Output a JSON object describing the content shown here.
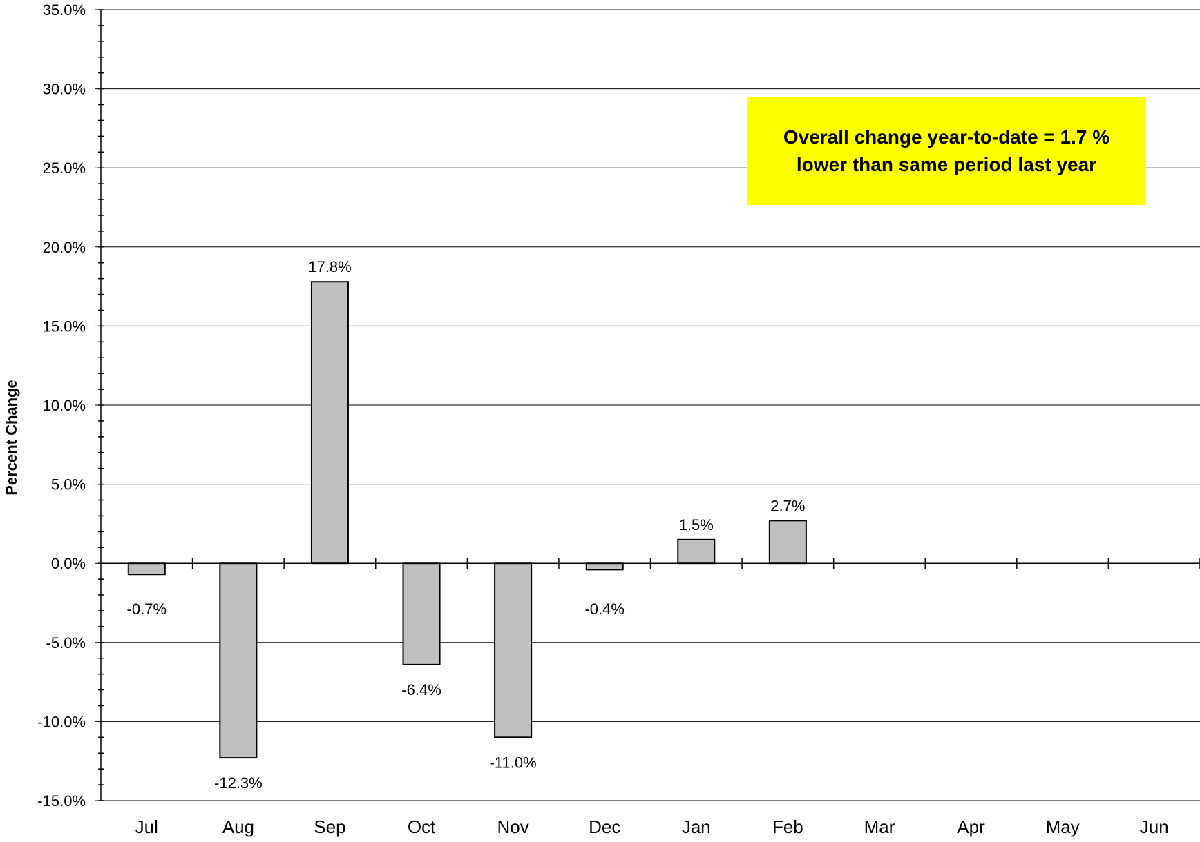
{
  "chart_data": {
    "type": "bar",
    "title": "",
    "xlabel": "",
    "ylabel": "Percent Change",
    "ylim": [
      -15.0,
      35.0
    ],
    "ytick_step": 5.0,
    "ytick_labels": [
      "35.0%",
      "30.0%",
      "25.0%",
      "20.0%",
      "15.0%",
      "10.0%",
      "5.0%",
      "0.0%",
      "-5.0%",
      "-10.0%",
      "-15.0%"
    ],
    "grid": true,
    "categories": [
      "Jul",
      "Aug",
      "Sep",
      "Oct",
      "Nov",
      "Dec",
      "Jan",
      "Feb",
      "Mar",
      "Apr",
      "May",
      "Jun"
    ],
    "values": [
      -0.7,
      -12.3,
      17.8,
      -6.4,
      -11.0,
      -0.4,
      1.5,
      2.7,
      null,
      null,
      null,
      null
    ],
    "data_labels": [
      "-0.7%",
      "-12.3%",
      "17.8%",
      "-6.4%",
      "-11.0%",
      "-0.4%",
      "1.5%",
      "2.7%",
      "",
      "",
      "",
      ""
    ],
    "bar_color": "#c0c0c0",
    "annotation": {
      "line1": "Overall change year-to-date = 1.7 %",
      "line2": "lower than same period last year",
      "background": "#ffff00",
      "placement": "top-right"
    }
  }
}
